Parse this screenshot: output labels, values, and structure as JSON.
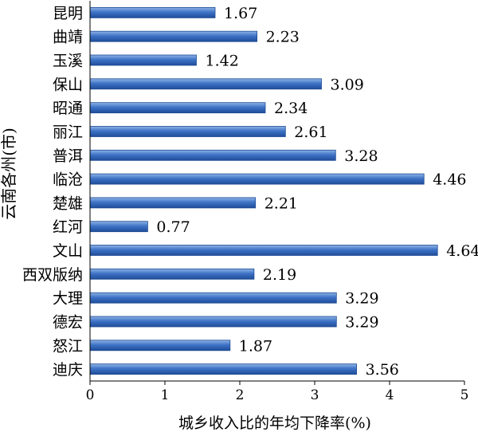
{
  "chart_data": {
    "type": "bar",
    "orientation": "horizontal",
    "categories": [
      "昆明",
      "曲靖",
      "玉溪",
      "保山",
      "昭通",
      "丽江",
      "普洱",
      "临沧",
      "楚雄",
      "红河",
      "文山",
      "西双版纳",
      "大理",
      "德宏",
      "怒江",
      "迪庆"
    ],
    "values": [
      1.67,
      2.23,
      1.42,
      3.09,
      2.34,
      2.61,
      3.28,
      4.46,
      2.21,
      0.77,
      4.64,
      2.19,
      3.29,
      3.29,
      1.87,
      3.56
    ],
    "value_labels": [
      "1.67",
      "2.23",
      "1.42",
      "3.09",
      "2.34",
      "2.61",
      "3.28",
      "4.46",
      "2.21",
      "0.77",
      "4.64",
      "2.19",
      "3.29",
      "3.29",
      "1.87",
      "3.56"
    ],
    "xlabel": "城乡收入比的年均下降率(%)",
    "ylabel": "云南各州(市)",
    "xlim": [
      0,
      5
    ],
    "xticks": [
      "0",
      "1",
      "2",
      "3",
      "4",
      "5"
    ],
    "grid": false,
    "bar_color": "#2f64b4"
  }
}
